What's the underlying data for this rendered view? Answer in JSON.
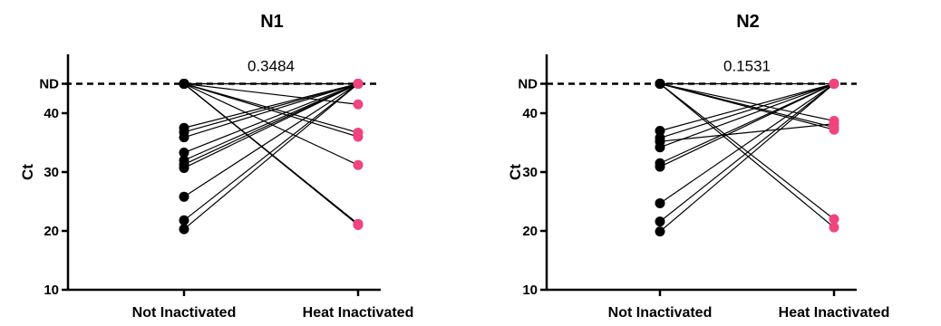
{
  "chart_data": [
    {
      "type": "scatter",
      "title": "N1",
      "xlabel": "",
      "ylabel": "Ct",
      "categories": [
        "Not Inactivated",
        "Heat Inactivated"
      ],
      "y_ticks": [
        "10",
        "20",
        "30",
        "40",
        "ND"
      ],
      "y_tick_values": [
        10,
        20,
        30,
        40,
        45
      ],
      "ylim": [
        10,
        45
      ],
      "reference_line": {
        "value": 45,
        "style": "dashed"
      },
      "annotation": "0.3484",
      "pairs": [
        [
          45,
          45
        ],
        [
          45,
          21.0
        ],
        [
          45,
          21.2
        ],
        [
          45,
          36.0
        ],
        [
          45,
          21.1
        ],
        [
          37.5,
          45
        ],
        [
          36.8,
          45
        ],
        [
          35.9,
          45
        ],
        [
          33.3,
          45
        ],
        [
          32.0,
          45
        ],
        [
          31.3,
          45
        ],
        [
          30.7,
          45
        ],
        [
          25.8,
          45
        ],
        [
          21.8,
          45
        ],
        [
          20.3,
          45
        ],
        [
          45,
          41.5
        ],
        [
          45,
          31.2
        ],
        [
          45,
          36.7
        ],
        [
          45,
          45
        ]
      ],
      "colors": {
        "not_inactivated": "#000000",
        "heat_inactivated": "#f0447f"
      }
    },
    {
      "type": "scatter",
      "title": "N2",
      "xlabel": "",
      "ylabel": "Ct",
      "categories": [
        "Not Inactivated",
        "Heat Inactivated"
      ],
      "y_ticks": [
        "10",
        "20",
        "30",
        "40",
        "ND"
      ],
      "y_tick_values": [
        10,
        20,
        30,
        40,
        45
      ],
      "ylim": [
        10,
        45
      ],
      "reference_line": {
        "value": 45,
        "style": "dashed"
      },
      "annotation": "0.1531",
      "pairs": [
        [
          45,
          45
        ],
        [
          45,
          37.2
        ],
        [
          45,
          22.0
        ],
        [
          45,
          20.6
        ],
        [
          37.0,
          45
        ],
        [
          35.8,
          45
        ],
        [
          35.2,
          38.2
        ],
        [
          34.2,
          45
        ],
        [
          31.5,
          45
        ],
        [
          30.9,
          45
        ],
        [
          24.7,
          45
        ],
        [
          21.6,
          45
        ],
        [
          19.9,
          45
        ],
        [
          45,
          38.7
        ],
        [
          45,
          37.6
        ]
      ],
      "colors": {
        "not_inactivated": "#000000",
        "heat_inactivated": "#f0447f"
      }
    }
  ]
}
